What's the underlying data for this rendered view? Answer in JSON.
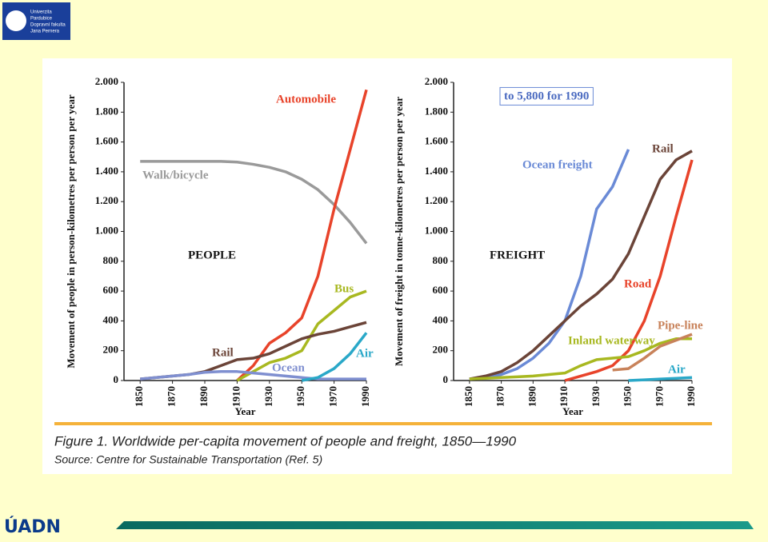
{
  "logo": {
    "lines": [
      "Univerzita",
      "Pardubice",
      "Dopravní fakulta",
      "Jana Pernera"
    ]
  },
  "footer_logo": "ÚADN",
  "figure_caption": "Figure 1.  Worldwide per-capita movement of people and freight, 1850—1990",
  "source": "Source: Centre for Sustainable Transportation (Ref. 5)",
  "chart_data": [
    {
      "type": "line",
      "ylabel": "Movement of people in person-kilometres per person per year",
      "xlabel": "Year",
      "annotations": [
        "PEOPLE"
      ],
      "x": [
        1850,
        1860,
        1870,
        1880,
        1890,
        1900,
        1910,
        1920,
        1930,
        1940,
        1950,
        1960,
        1970,
        1980,
        1990
      ],
      "xlim": [
        1840,
        1990
      ],
      "xticks": [
        1850,
        1870,
        1890,
        1910,
        1930,
        1950,
        1970,
        1990
      ],
      "ylim": [
        0,
        2000
      ],
      "yticks": [
        0,
        200,
        400,
        600,
        800,
        {
          "value": 1000,
          "label": "1.000"
        },
        {
          "value": 1200,
          "label": "1.200"
        },
        {
          "value": 1400,
          "label": "1.400"
        },
        {
          "value": 1600,
          "label": "1.600"
        },
        {
          "value": 1800,
          "label": "1.800"
        },
        {
          "value": 2000,
          "label": "2.000"
        }
      ],
      "series": [
        {
          "name": "Walk/bicycle",
          "color": "#9a9a9a",
          "values": [
            1470,
            1470,
            1470,
            1470,
            1470,
            1470,
            1465,
            1450,
            1430,
            1400,
            1350,
            1280,
            1180,
            1060,
            920
          ]
        },
        {
          "name": "Automobile",
          "color": "#e8432a",
          "values": [
            null,
            null,
            null,
            null,
            null,
            null,
            0,
            100,
            250,
            320,
            420,
            700,
            1150,
            1550,
            1950
          ]
        },
        {
          "name": "Bus",
          "color": "#a8b820",
          "values": [
            null,
            null,
            null,
            null,
            null,
            null,
            0,
            60,
            120,
            150,
            200,
            380,
            470,
            560,
            600
          ]
        },
        {
          "name": "Rail",
          "color": "#6b4438",
          "values": [
            10,
            20,
            30,
            40,
            60,
            100,
            140,
            150,
            180,
            230,
            280,
            310,
            330,
            360,
            390
          ]
        },
        {
          "name": "Ocean",
          "color": "#7f8fd0",
          "values": [
            10,
            20,
            30,
            40,
            55,
            60,
            60,
            50,
            40,
            30,
            20,
            10,
            10,
            10,
            10
          ]
        },
        {
          "name": "Air",
          "color": "#2aa8c8",
          "values": [
            null,
            null,
            null,
            null,
            null,
            null,
            null,
            null,
            null,
            null,
            0,
            20,
            80,
            180,
            320
          ]
        }
      ]
    },
    {
      "type": "line",
      "ylabel": "Movement of freight in tonne-kilometres per person per year",
      "xlabel": "Year",
      "annotations": [
        "FREIGHT",
        "to 5,800 for 1990"
      ],
      "x": [
        1850,
        1860,
        1870,
        1880,
        1890,
        1900,
        1910,
        1920,
        1930,
        1940,
        1950,
        1960,
        1970,
        1980,
        1990
      ],
      "xlim": [
        1840,
        1990
      ],
      "xticks": [
        1850,
        1870,
        1890,
        1910,
        1930,
        1950,
        1970,
        1990
      ],
      "ylim": [
        0,
        2000
      ],
      "yticks": [
        0,
        200,
        400,
        600,
        800,
        {
          "value": 1000,
          "label": "1.000"
        },
        {
          "value": 1200,
          "label": "1.200"
        },
        {
          "value": 1400,
          "label": "1.400"
        },
        {
          "value": 1600,
          "label": "1.600"
        },
        {
          "value": 1800,
          "label": "1.800"
        },
        {
          "value": 2000,
          "label": "2.000"
        }
      ],
      "series": [
        {
          "name": "Ocean freight",
          "color": "#6a8ad6",
          "values": [
            10,
            20,
            40,
            80,
            150,
            250,
            400,
            700,
            1150,
            1300,
            1550,
            null,
            null,
            null,
            null
          ]
        },
        {
          "name": "Rail",
          "color": "#6b4438",
          "values": [
            10,
            30,
            60,
            120,
            200,
            300,
            400,
            500,
            580,
            680,
            850,
            1100,
            1350,
            1480,
            1540
          ]
        },
        {
          "name": "Road",
          "color": "#e8432a",
          "values": [
            null,
            null,
            null,
            null,
            null,
            null,
            0,
            30,
            60,
            100,
            200,
            400,
            700,
            1100,
            1480
          ]
        },
        {
          "name": "Inland waterway",
          "color": "#a8b820",
          "values": [
            10,
            15,
            20,
            25,
            30,
            40,
            50,
            100,
            140,
            150,
            160,
            200,
            250,
            280,
            280
          ]
        },
        {
          "name": "Pipe-line",
          "color": "#c8825a",
          "values": [
            null,
            null,
            null,
            null,
            null,
            null,
            null,
            null,
            null,
            70,
            80,
            150,
            230,
            270,
            310
          ]
        },
        {
          "name": "Air",
          "color": "#2aa8c8",
          "values": [
            null,
            null,
            null,
            null,
            null,
            null,
            null,
            null,
            null,
            null,
            0,
            5,
            10,
            15,
            20
          ]
        }
      ]
    }
  ]
}
